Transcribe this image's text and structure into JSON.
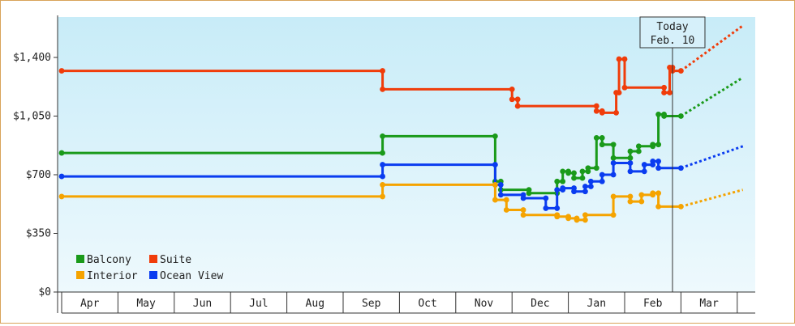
{
  "chart_data": {
    "type": "line",
    "colors": {
      "Balcony": "#1a9a1a",
      "Suite": "#f03c0a",
      "Interior": "#f5a300",
      "Ocean View": "#0a3cf0"
    },
    "months": [
      "Apr",
      "May",
      "Jun",
      "Jul",
      "Aug",
      "Sep",
      "Oct",
      "Nov",
      "Dec",
      "Jan",
      "Feb",
      "Mar"
    ],
    "y_ticks": [
      {
        "value": 0,
        "label": "$0"
      },
      {
        "value": 350,
        "label": "$350"
      },
      {
        "value": 700,
        "label": "$700"
      },
      {
        "value": 1050,
        "label": "$1,050"
      },
      {
        "value": 1400,
        "label": "$1,400"
      }
    ],
    "ylim": [
      0,
      1400
    ],
    "today_label": [
      "Today",
      "Feb. 10"
    ],
    "today_x": 10.35,
    "legend": [
      {
        "name": "Balcony"
      },
      {
        "name": "Suite"
      },
      {
        "name": "Interior"
      },
      {
        "name": "Ocean View"
      }
    ],
    "series": [
      {
        "name": "Suite",
        "points": [
          [
            -0.5,
            1320
          ],
          [
            5.2,
            1320
          ],
          [
            5.2,
            1210
          ],
          [
            7.5,
            1210
          ],
          [
            7.5,
            1150
          ],
          [
            7.6,
            1150
          ],
          [
            7.6,
            1110
          ],
          [
            9.0,
            1110
          ],
          [
            9.0,
            1080
          ],
          [
            9.1,
            1080
          ],
          [
            9.1,
            1070
          ],
          [
            9.35,
            1070
          ],
          [
            9.35,
            1190
          ],
          [
            9.4,
            1190
          ],
          [
            9.4,
            1390
          ],
          [
            9.5,
            1390
          ],
          [
            9.5,
            1220
          ],
          [
            10.2,
            1220
          ],
          [
            10.2,
            1190
          ],
          [
            10.3,
            1190
          ],
          [
            10.3,
            1340
          ],
          [
            10.35,
            1340
          ],
          [
            10.35,
            1320
          ],
          [
            10.5,
            1320
          ]
        ],
        "projection": [
          [
            10.5,
            1320
          ],
          [
            11.6,
            1590
          ]
        ]
      },
      {
        "name": "Balcony",
        "points": [
          [
            -0.5,
            830
          ],
          [
            5.2,
            830
          ],
          [
            5.2,
            930
          ],
          [
            7.2,
            930
          ],
          [
            7.2,
            660
          ],
          [
            7.3,
            660
          ],
          [
            7.3,
            610
          ],
          [
            7.8,
            610
          ],
          [
            7.8,
            590
          ],
          [
            8.3,
            590
          ],
          [
            8.3,
            660
          ],
          [
            8.4,
            660
          ],
          [
            8.4,
            720
          ],
          [
            8.5,
            720
          ],
          [
            8.5,
            710
          ],
          [
            8.6,
            710
          ],
          [
            8.6,
            680
          ],
          [
            8.75,
            680
          ],
          [
            8.75,
            720
          ],
          [
            8.85,
            720
          ],
          [
            8.85,
            740
          ],
          [
            9.0,
            740
          ],
          [
            9.0,
            920
          ],
          [
            9.1,
            920
          ],
          [
            9.1,
            880
          ],
          [
            9.3,
            880
          ],
          [
            9.3,
            800
          ],
          [
            9.6,
            800
          ],
          [
            9.6,
            840
          ],
          [
            9.75,
            840
          ],
          [
            9.75,
            870
          ],
          [
            10.0,
            870
          ],
          [
            10.0,
            880
          ],
          [
            10.1,
            880
          ],
          [
            10.1,
            1060
          ],
          [
            10.2,
            1060
          ],
          [
            10.2,
            1050
          ],
          [
            10.5,
            1050
          ]
        ],
        "projection": [
          [
            10.5,
            1050
          ],
          [
            11.6,
            1280
          ]
        ]
      },
      {
        "name": "Ocean View",
        "points": [
          [
            -0.5,
            690
          ],
          [
            5.2,
            690
          ],
          [
            5.2,
            760
          ],
          [
            7.2,
            760
          ],
          [
            7.2,
            640
          ],
          [
            7.3,
            640
          ],
          [
            7.3,
            580
          ],
          [
            7.7,
            580
          ],
          [
            7.7,
            560
          ],
          [
            8.1,
            560
          ],
          [
            8.1,
            500
          ],
          [
            8.3,
            500
          ],
          [
            8.3,
            610
          ],
          [
            8.4,
            610
          ],
          [
            8.4,
            620
          ],
          [
            8.6,
            620
          ],
          [
            8.6,
            600
          ],
          [
            8.8,
            600
          ],
          [
            8.8,
            630
          ],
          [
            8.9,
            630
          ],
          [
            8.9,
            660
          ],
          [
            9.1,
            660
          ],
          [
            9.1,
            700
          ],
          [
            9.3,
            700
          ],
          [
            9.3,
            770
          ],
          [
            9.6,
            770
          ],
          [
            9.6,
            720
          ],
          [
            9.85,
            720
          ],
          [
            9.85,
            760
          ],
          [
            10.0,
            760
          ],
          [
            10.0,
            780
          ],
          [
            10.1,
            780
          ],
          [
            10.1,
            740
          ],
          [
            10.5,
            740
          ]
        ],
        "projection": [
          [
            10.5,
            740
          ],
          [
            11.6,
            870
          ]
        ]
      },
      {
        "name": "Interior",
        "points": [
          [
            -0.5,
            570
          ],
          [
            5.2,
            570
          ],
          [
            5.2,
            640
          ],
          [
            7.2,
            640
          ],
          [
            7.2,
            550
          ],
          [
            7.4,
            550
          ],
          [
            7.4,
            490
          ],
          [
            7.7,
            490
          ],
          [
            7.7,
            460
          ],
          [
            8.3,
            460
          ],
          [
            8.3,
            450
          ],
          [
            8.5,
            450
          ],
          [
            8.5,
            440
          ],
          [
            8.65,
            440
          ],
          [
            8.65,
            430
          ],
          [
            8.8,
            430
          ],
          [
            8.8,
            460
          ],
          [
            9.3,
            460
          ],
          [
            9.3,
            570
          ],
          [
            9.6,
            570
          ],
          [
            9.6,
            540
          ],
          [
            9.8,
            540
          ],
          [
            9.8,
            580
          ],
          [
            10.0,
            580
          ],
          [
            10.0,
            590
          ],
          [
            10.1,
            590
          ],
          [
            10.1,
            510
          ],
          [
            10.5,
            510
          ]
        ],
        "projection": [
          [
            10.5,
            510
          ],
          [
            11.6,
            610
          ]
        ]
      }
    ]
  }
}
